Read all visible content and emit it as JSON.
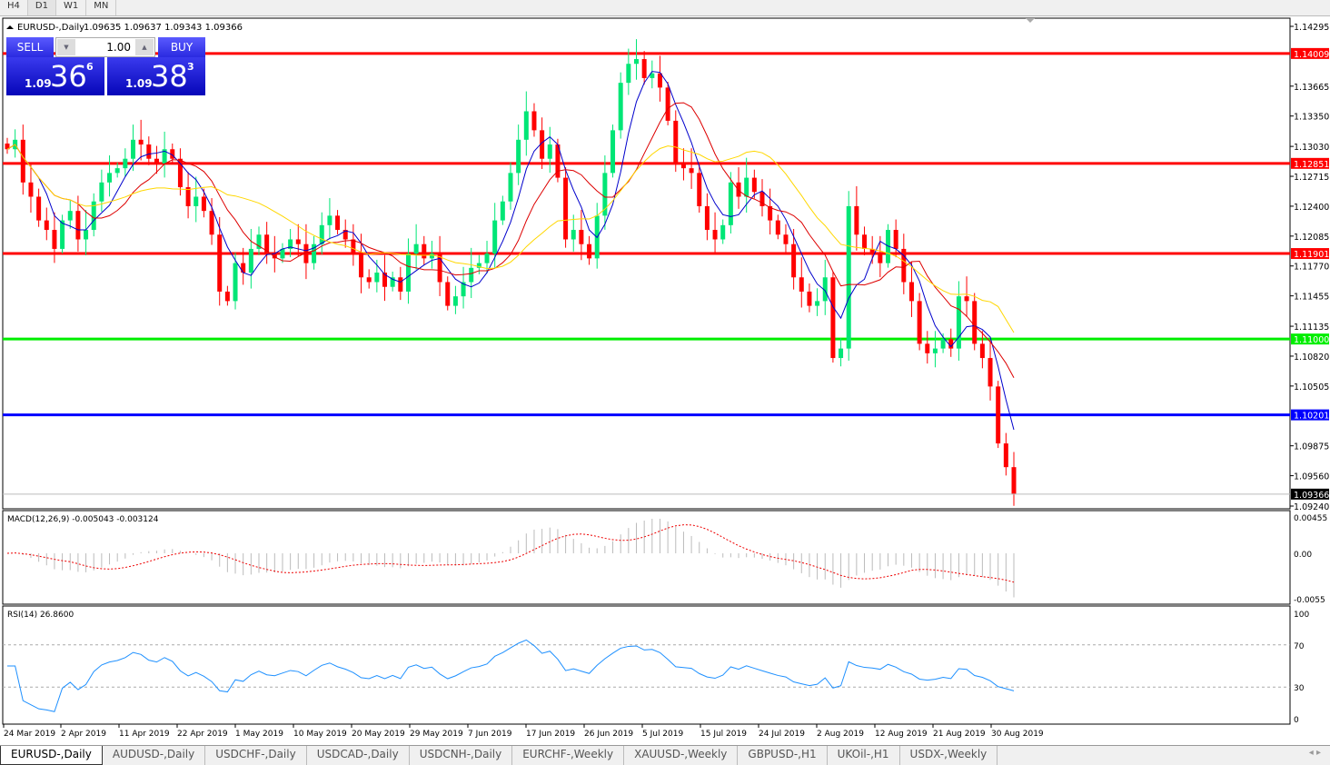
{
  "timeframes": [
    "H4",
    "D1",
    "W1",
    "MN"
  ],
  "active_timeframe": "D1",
  "chart": {
    "title": "EURUSD-,Daily",
    "ohlc": "1.09635 1.09637 1.09343 1.09366"
  },
  "trade_panel": {
    "sell_label": "SELL",
    "buy_label": "BUY",
    "lot": "1.00",
    "sell_small": "1.09",
    "sell_big": "36",
    "sell_pip": "6",
    "buy_small": "1.09",
    "buy_big": "38",
    "buy_pip": "3"
  },
  "price_axis": [
    "1.14295",
    "1.13665",
    "1.13350",
    "1.13030",
    "1.12715",
    "1.12400",
    "1.12085",
    "1.11770",
    "1.11455",
    "1.11135",
    "1.10820",
    "1.10505",
    "1.09875",
    "1.09560",
    "1.09240"
  ],
  "levels": [
    {
      "price": "1.14009",
      "color": "#ff0000"
    },
    {
      "price": "1.12851",
      "color": "#ff0000"
    },
    {
      "price": "1.11901",
      "color": "#ff0000"
    },
    {
      "price": "1.11000",
      "color": "#00ee00"
    },
    {
      "price": "1.10201",
      "color": "#0000ff"
    }
  ],
  "current_price": "1.09366",
  "colors": {
    "bull": "#00e676",
    "bear": "#ff0000",
    "ma_fast": "#0000cc",
    "ma_mid": "#dd0000",
    "ma_slow": "#ffd700",
    "rsi": "#1e90ff"
  },
  "closes": [
    1.13,
    1.131,
    1.1265,
    1.125,
    1.1225,
    1.1215,
    1.1195,
    1.1225,
    1.1235,
    1.1205,
    1.1215,
    1.1245,
    1.1265,
    1.1275,
    1.128,
    1.129,
    1.131,
    1.1305,
    1.129,
    1.1285,
    1.13,
    1.129,
    1.126,
    1.124,
    1.125,
    1.1235,
    1.121,
    1.115,
    1.114,
    1.118,
    1.117,
    1.1195,
    1.121,
    1.119,
    1.1185,
    1.1195,
    1.1205,
    1.12,
    1.118,
    1.12,
    1.122,
    1.123,
    1.1215,
    1.1205,
    1.119,
    1.1165,
    1.116,
    1.117,
    1.1155,
    1.1165,
    1.115,
    1.119,
    1.12,
    1.1185,
    1.119,
    1.116,
    1.1135,
    1.1145,
    1.116,
    1.1175,
    1.118,
    1.119,
    1.1225,
    1.1245,
    1.1275,
    1.131,
    1.134,
    1.132,
    1.129,
    1.1305,
    1.127,
    1.1205,
    1.1215,
    1.12,
    1.1185,
    1.123,
    1.1275,
    1.132,
    1.137,
    1.139,
    1.1395,
    1.1375,
    1.138,
    1.1365,
    1.133,
    1.1285,
    1.128,
    1.1275,
    1.124,
    1.1215,
    1.1205,
    1.122,
    1.1265,
    1.125,
    1.127,
    1.1255,
    1.124,
    1.1225,
    1.121,
    1.12,
    1.1165,
    1.115,
    1.1135,
    1.114,
    1.1165,
    1.108,
    1.109,
    1.124,
    1.121,
    1.1195,
    1.119,
    1.118,
    1.1215,
    1.1195,
    1.116,
    1.114,
    1.1095,
    1.1085,
    1.109,
    1.11,
    1.109,
    1.1145,
    1.114,
    1.1095,
    1.108,
    1.105,
    1.099,
    1.0965,
    1.0937
  ],
  "macd": {
    "label": "MACD(12,26,9) -0.005043 -0.003124",
    "axis": [
      "0.00455",
      "0.00",
      "-0.0055"
    ]
  },
  "rsi": {
    "label": "RSI(14) 26.8600",
    "axis": [
      "100",
      "70",
      "30",
      "0"
    ]
  },
  "dates": [
    "24 Mar 2019",
    "2 Apr 2019",
    "11 Apr 2019",
    "22 Apr 2019",
    "1 May 2019",
    "10 May 2019",
    "20 May 2019",
    "29 May 2019",
    "7 Jun 2019",
    "17 Jun 2019",
    "26 Jun 2019",
    "5 Jul 2019",
    "15 Jul 2019",
    "24 Jul 2019",
    "2 Aug 2019",
    "12 Aug 2019",
    "21 Aug 2019",
    "30 Aug 2019"
  ],
  "tabs": [
    "EURUSD-,Daily",
    "AUDUSD-,Daily",
    "USDCHF-,Daily",
    "USDCAD-,Daily",
    "USDCNH-,Daily",
    "EURCHF-,Weekly",
    "XAUUSD-,Weekly",
    "GBPUSD-,H1",
    "UKOil-,H1",
    "USDX-,Weekly"
  ],
  "active_tab": "EURUSD-,Daily"
}
